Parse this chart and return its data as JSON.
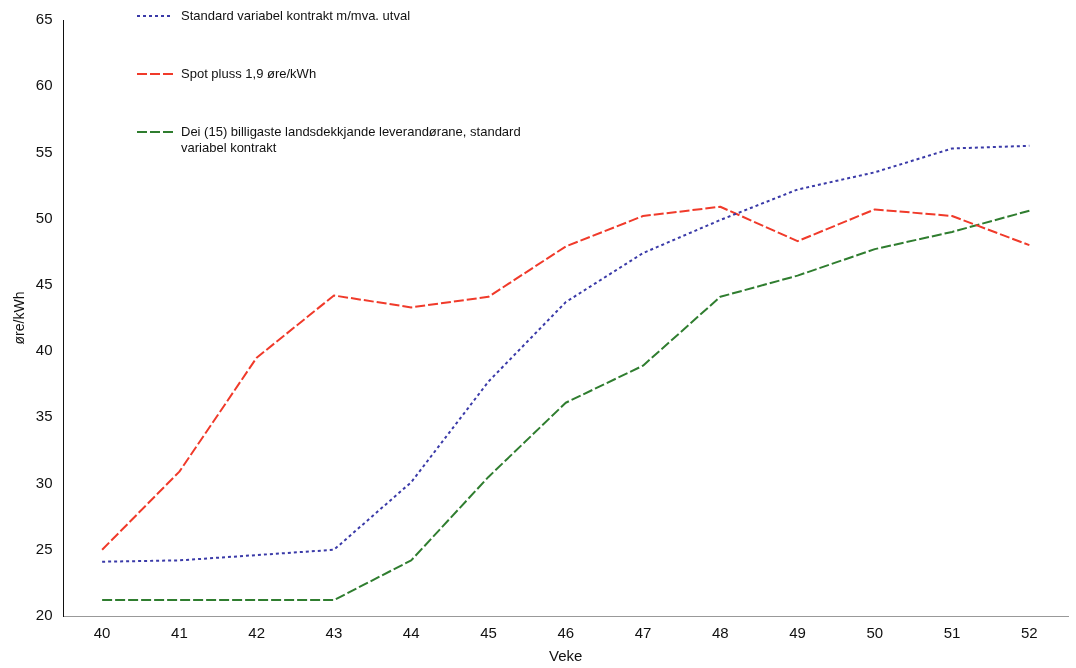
{
  "chart_data": {
    "type": "line",
    "xlabel": "Veke",
    "ylabel": "øre/kWh",
    "categories": [
      "40",
      "41",
      "42",
      "43",
      "44",
      "45",
      "46",
      "47",
      "48",
      "49",
      "50",
      "51",
      "52"
    ],
    "ylim": [
      20,
      65
    ],
    "yticks": [
      20,
      25,
      30,
      35,
      40,
      45,
      50,
      55,
      60,
      65
    ],
    "grid": false,
    "legend": "top left",
    "marker": "none",
    "series": [
      {
        "name": "Standard variabel kontrakt m/mva. utval",
        "color": "#3a3aa8",
        "line_style": "dotted",
        "values": [
          24.1,
          24.2,
          24.6,
          25.0,
          30.1,
          37.7,
          43.7,
          47.4,
          49.9,
          52.2,
          53.5,
          55.3,
          55.5
        ]
      },
      {
        "name": "Spot pluss 1,9 øre/kWh",
        "color": "#f03a2a",
        "line_style": "dashed",
        "values": [
          25.0,
          30.9,
          39.5,
          44.2,
          43.3,
          44.1,
          47.9,
          50.2,
          50.9,
          48.3,
          50.7,
          50.2,
          48.0
        ]
      },
      {
        "name": "Dei (15) billigaste landsdekkjande leverandørane, standard variabel kontrakt",
        "color": "#2f7d2f",
        "line_style": "dashed",
        "values": [
          21.2,
          21.2,
          21.2,
          21.2,
          24.2,
          30.5,
          36.1,
          38.9,
          44.1,
          45.7,
          47.7,
          49.0,
          50.6
        ]
      }
    ]
  }
}
